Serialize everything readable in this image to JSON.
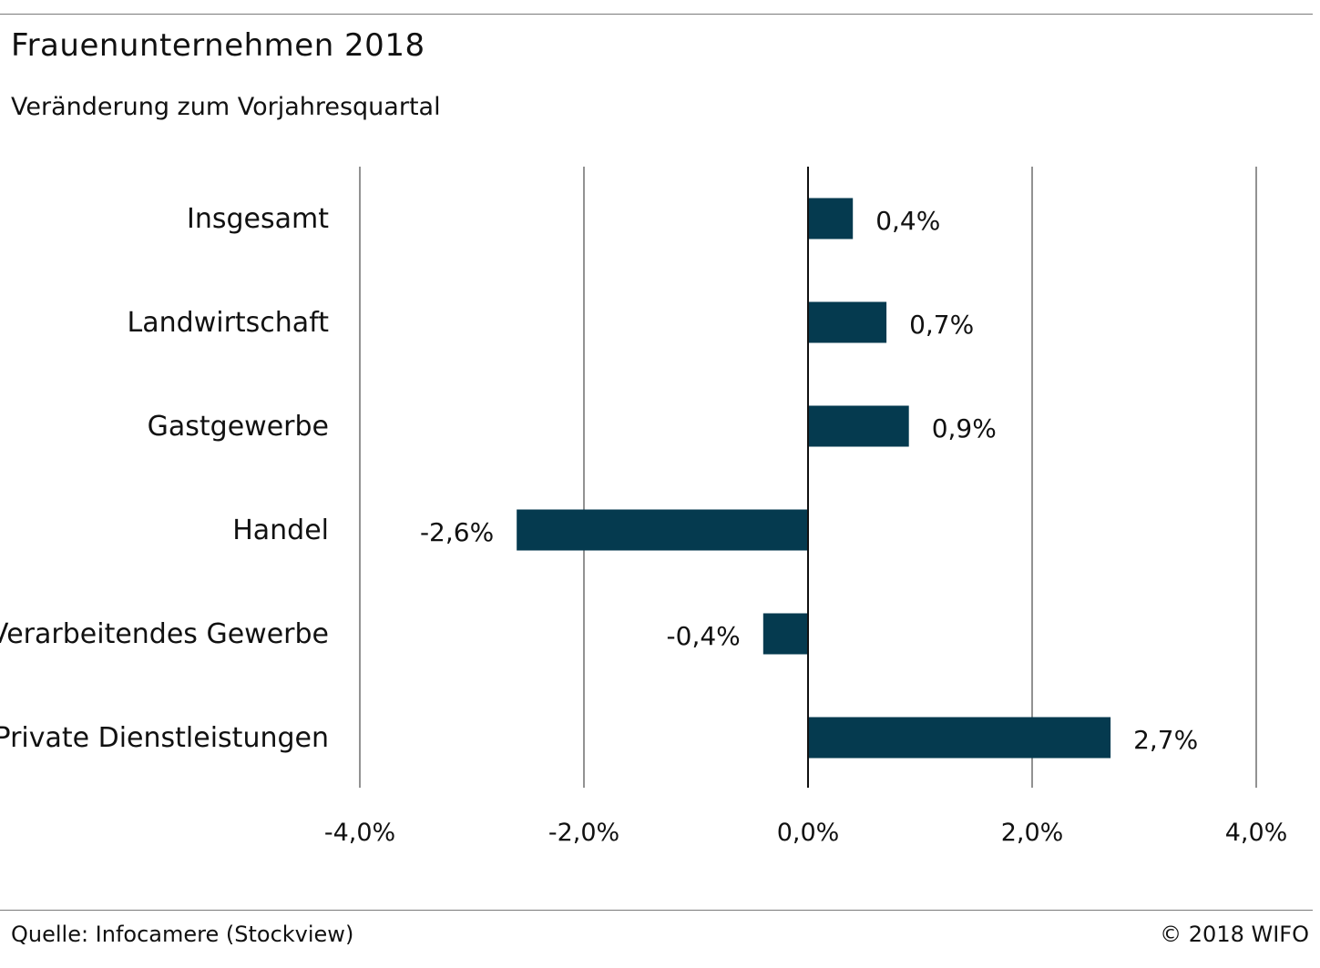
{
  "header": {
    "title": "Frauenunternehmen 2018",
    "subtitle": "Veränderung zum Vorjahresquartal"
  },
  "footer": {
    "source": "Quelle: Infocamere (Stockview)",
    "copyright": "© 2018 WIFO"
  },
  "colors": {
    "bar": "#053a4f",
    "grid": "#4a4a4a",
    "axis": "#111111",
    "rule": "#7a7a7a"
  },
  "chart_data": {
    "type": "bar",
    "orientation": "horizontal",
    "title": "Frauenunternehmen 2018",
    "subtitle": "Veränderung zum Vorjahresquartal",
    "categories": [
      "Insgesamt",
      "Landwirtschaft",
      "Gastgewerbe",
      "Handel",
      "Verarbeitendes Gewerbe",
      "Private Dienstleistungen"
    ],
    "values": [
      0.4,
      0.7,
      0.9,
      -2.6,
      -0.4,
      2.7
    ],
    "value_labels": [
      "0,4%",
      "0,7%",
      "0,9%",
      "-2,6%",
      "-0,4%",
      "2,7%"
    ],
    "xlim": [
      -4.0,
      4.0
    ],
    "xticks": [
      -4.0,
      -2.0,
      0.0,
      2.0,
      4.0
    ],
    "xtick_labels": [
      "-4,0%",
      "-2,0%",
      "0,0%",
      "2,0%",
      "4,0%"
    ],
    "grid": "vertical",
    "legend": "none"
  }
}
